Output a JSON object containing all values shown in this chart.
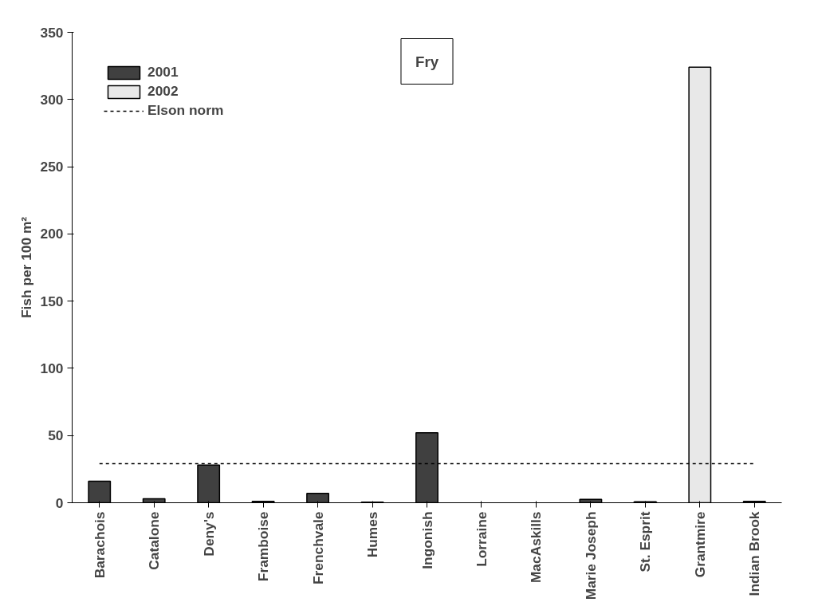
{
  "chart_data": {
    "type": "bar",
    "title": "Fry",
    "ylabel": "Fish per 100 m²",
    "categories": [
      "Barachois",
      "Catalone",
      "Deny's",
      "Framboise",
      "Frenchvale",
      "Humes",
      "Ingonish",
      "Lorraine",
      "MacAskills",
      "Marie Joseph",
      "St. Esprit",
      "Grantmire",
      "Indian Brook"
    ],
    "series": [
      {
        "name": "2001",
        "color": "#404040",
        "values": [
          16,
          3,
          28,
          1,
          7,
          0.5,
          52,
          null,
          null,
          2.5,
          0.8,
          null,
          1
        ]
      },
      {
        "name": "2002",
        "color": "#e8e8e8",
        "values": [
          null,
          null,
          null,
          null,
          null,
          null,
          null,
          null,
          null,
          null,
          null,
          324,
          null
        ]
      }
    ],
    "ylim": [
      0,
      350
    ],
    "yticks": [
      0,
      50,
      100,
      150,
      200,
      250,
      300,
      350
    ],
    "ref_lines": [
      {
        "axis": "y",
        "value": 29,
        "label": "Elson norm",
        "color": "#000000",
        "line_style": "dotted"
      }
    ],
    "grid": false,
    "legend": "top left"
  }
}
